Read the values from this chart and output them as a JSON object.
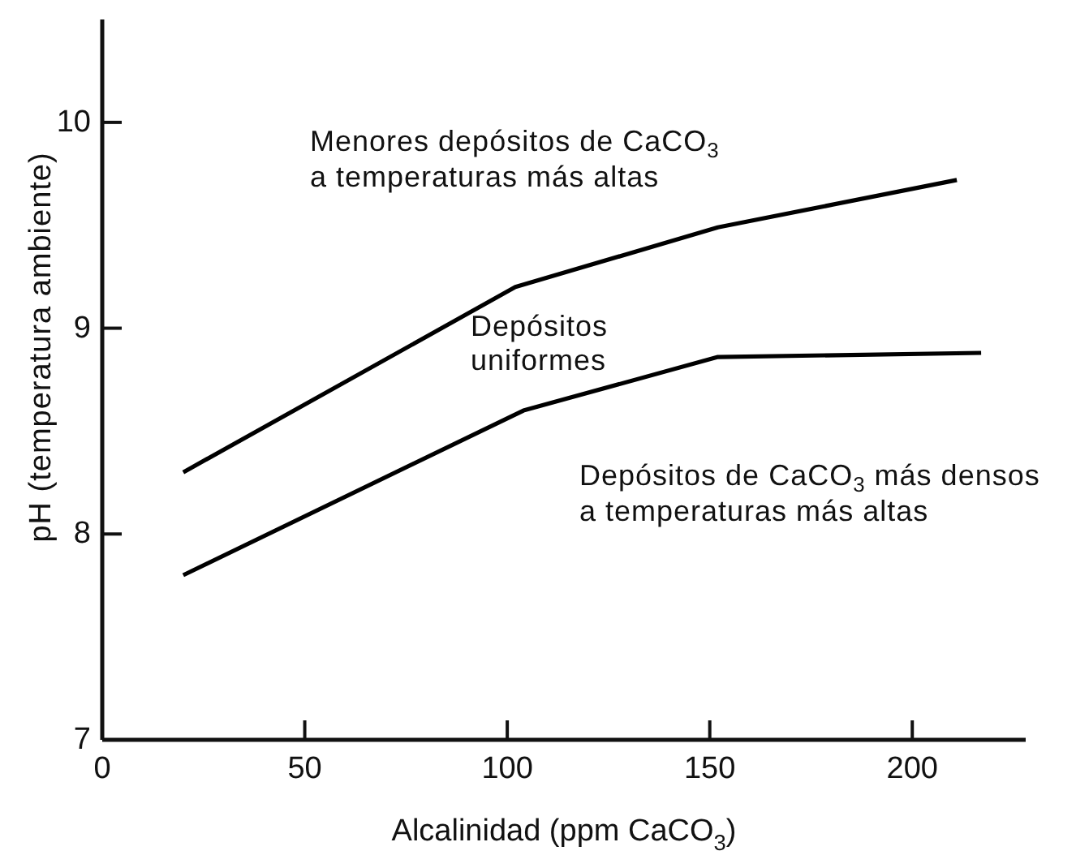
{
  "chart_data": {
    "type": "line",
    "xlabel": "Alcalinidad (ppm CaCO$_{3}$)",
    "ylabel": "pH (temperatura ambiente)",
    "xlim": [
      0,
      228
    ],
    "ylim": [
      7,
      10.5
    ],
    "xticks": [
      0,
      50,
      100,
      150,
      200
    ],
    "yticks": [
      7,
      8,
      9,
      10
    ],
    "series": [
      {
        "color": "#000000",
        "x": [
          20,
          102,
          152,
          211
        ],
        "values": [
          8.3,
          9.2,
          9.49,
          9.72
        ]
      },
      {
        "color": "#000000",
        "x": [
          20,
          104,
          152,
          217
        ],
        "values": [
          7.8,
          8.6,
          8.86,
          8.88
        ]
      }
    ],
    "annotations": [
      "Menores depósitos de CaCO$_{3}$ a temperaturas más altas",
      "Depósitos uniformes",
      "Depósitos de CaCO$_{3}$ más densos a temperaturas más altas"
    ]
  }
}
